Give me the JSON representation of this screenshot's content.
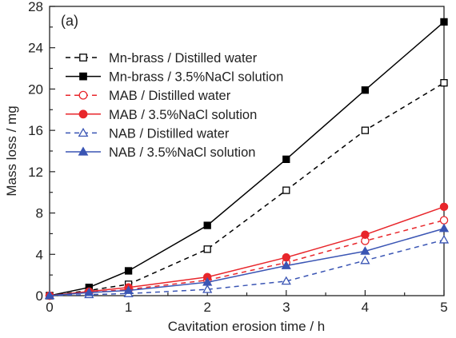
{
  "chart_data": {
    "type": "line",
    "panel_label": "(a)",
    "xlabel": "Cavitation erosion time / h",
    "ylabel": "Mass loss / mg",
    "xlim": [
      0,
      5
    ],
    "ylim": [
      0,
      28
    ],
    "xticks": [
      0,
      1,
      2,
      3,
      4,
      5
    ],
    "yticks": [
      0,
      4,
      8,
      12,
      16,
      20,
      24,
      28
    ],
    "grid": false,
    "legend_position": "top-left",
    "x": [
      0,
      0.5,
      1,
      2,
      3,
      4,
      5
    ],
    "series": [
      {
        "name": "Mn-brass / Distilled water",
        "values": [
          0,
          0.5,
          1.1,
          4.5,
          10.2,
          16.0,
          20.6
        ],
        "color": "#000000",
        "dash": "dashed",
        "marker": "square",
        "filled": false
      },
      {
        "name": "Mn-brass / 3.5%NaCl solution",
        "values": [
          0,
          0.8,
          2.4,
          6.8,
          13.2,
          19.9,
          26.5
        ],
        "color": "#000000",
        "dash": "solid",
        "marker": "square",
        "filled": true
      },
      {
        "name": "MAB / Distilled water",
        "values": [
          0,
          0.3,
          0.6,
          1.5,
          3.2,
          5.3,
          7.3
        ],
        "color": "#e8262b",
        "dash": "dashed",
        "marker": "circle",
        "filled": false
      },
      {
        "name": "MAB / 3.5%NaCl solution",
        "values": [
          0,
          0.4,
          0.8,
          1.8,
          3.7,
          5.9,
          8.6
        ],
        "color": "#e8262b",
        "dash": "solid",
        "marker": "circle",
        "filled": true
      },
      {
        "name": "NAB / Distilled water",
        "values": [
          0,
          0.1,
          0.2,
          0.6,
          1.4,
          3.4,
          5.4
        ],
        "color": "#3a55b4",
        "dash": "dashed",
        "marker": "triangle",
        "filled": false
      },
      {
        "name": "NAB / 3.5%NaCl solution",
        "values": [
          0,
          0.3,
          0.5,
          1.3,
          2.9,
          4.3,
          6.5
        ],
        "color": "#3a55b4",
        "dash": "solid",
        "marker": "triangle",
        "filled": true
      }
    ]
  }
}
